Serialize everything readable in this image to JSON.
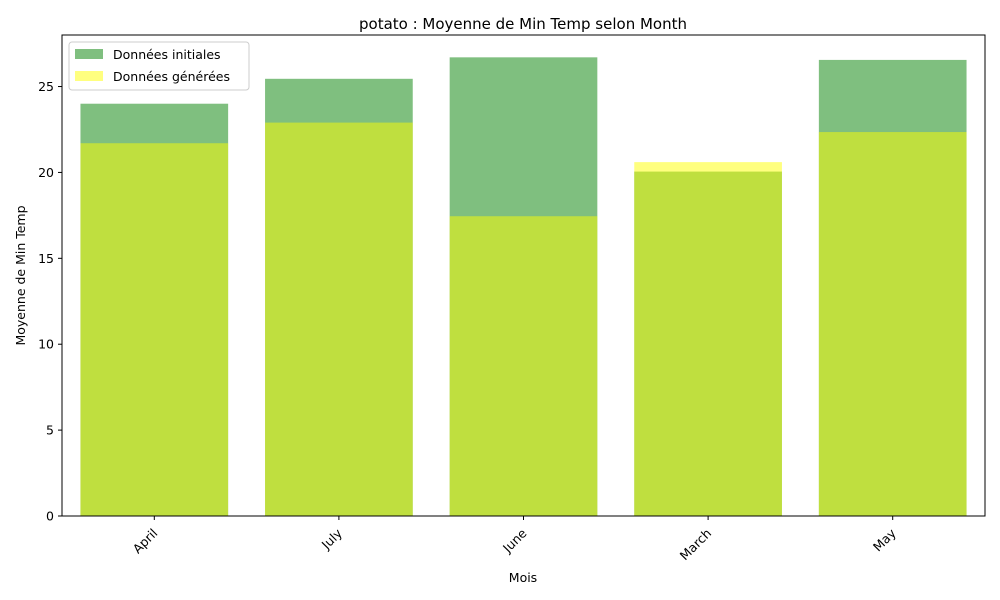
{
  "chart_data": {
    "type": "bar",
    "title": "potato : Moyenne de Min Temp selon Month",
    "xlabel": "Mois",
    "ylabel": "Moyenne de Min Temp",
    "categories": [
      "April",
      "July",
      "June",
      "March",
      "May"
    ],
    "series": [
      {
        "name": "Données initiales",
        "values": [
          24.0,
          25.45,
          26.7,
          20.05,
          26.55
        ],
        "color": "#008000",
        "opacity": 0.5
      },
      {
        "name": "Données générées",
        "values": [
          21.7,
          22.9,
          17.45,
          20.6,
          22.35
        ],
        "color": "#ffff00",
        "opacity": 0.5
      }
    ],
    "ylim": [
      0,
      28
    ],
    "yticks": [
      0,
      5,
      10,
      15,
      20,
      25
    ],
    "grid": false,
    "legend": "top-left",
    "xtick_rotation": 45
  }
}
